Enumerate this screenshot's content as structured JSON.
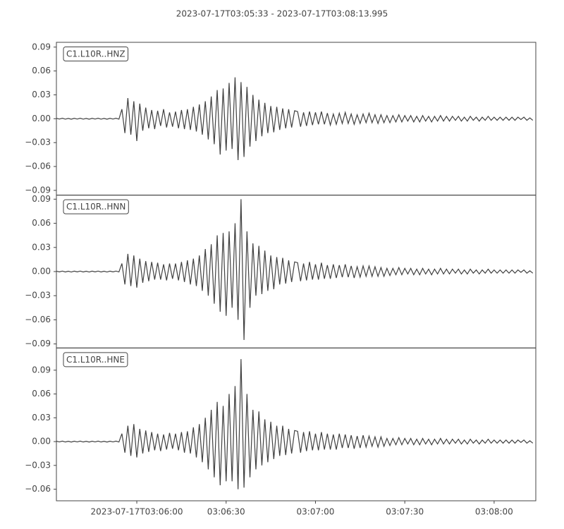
{
  "title": "2023-07-17T03:05:33  -  2023-07-17T03:08:13.995",
  "chart_data": [
    {
      "type": "line",
      "label": "C1.L10R..HNZ",
      "color": "#404040",
      "x": [
        0,
        1,
        2,
        3,
        4,
        5,
        6,
        7,
        8,
        9,
        10,
        11,
        12,
        13,
        14,
        15,
        16,
        17,
        18,
        19,
        20,
        21,
        22,
        23,
        24,
        25,
        26,
        27,
        28,
        29,
        30,
        31,
        32,
        33,
        34,
        35,
        36,
        37,
        38,
        39,
        40,
        41,
        42,
        43,
        44,
        45,
        46,
        47,
        48,
        49,
        50,
        51,
        52,
        53,
        54,
        55,
        56,
        57,
        58,
        59,
        60,
        61,
        62,
        63,
        64,
        65,
        66,
        67,
        68,
        69,
        70,
        71,
        72,
        73,
        74,
        75,
        76,
        77,
        78,
        79,
        80,
        81,
        82,
        83,
        84,
        85,
        86,
        87,
        88,
        89,
        90,
        91,
        92,
        93,
        94,
        95,
        96,
        97,
        98,
        99,
        100,
        101,
        102,
        103,
        104,
        105,
        106,
        107,
        108,
        109,
        110,
        111,
        112,
        113,
        114,
        115,
        116,
        117,
        118,
        119,
        120,
        121,
        122,
        123,
        124,
        125,
        126,
        127,
        128,
        129,
        130,
        131,
        132,
        133,
        134,
        135,
        136,
        137,
        138,
        139,
        140,
        141,
        142,
        143,
        144,
        145,
        146,
        147,
        148,
        149,
        150,
        151,
        152,
        153,
        154,
        155,
        156,
        157,
        158,
        159,
        160
      ],
      "values": [
        0.0005,
        -0.0004,
        0.0006,
        -0.0005,
        0.0004,
        -0.0006,
        0.0005,
        -0.0004,
        0.0006,
        -0.0005,
        0.0004,
        -0.0006,
        0.0005,
        -0.0004,
        0.0006,
        -0.0005,
        0.0004,
        -0.0006,
        0.0005,
        -0.0004,
        0.0006,
        -0.0005,
        0.012,
        -0.018,
        0.026,
        -0.02,
        0.022,
        -0.028,
        0.019,
        -0.015,
        0.014,
        -0.012,
        0.011,
        -0.013,
        0.01,
        -0.009,
        0.012,
        -0.011,
        0.008,
        -0.01,
        0.009,
        -0.012,
        0.011,
        -0.013,
        0.012,
        -0.014,
        0.015,
        -0.016,
        0.018,
        -0.02,
        0.022,
        -0.026,
        0.028,
        -0.032,
        0.036,
        -0.045,
        0.038,
        -0.04,
        0.045,
        -0.038,
        0.052,
        -0.052,
        0.046,
        -0.048,
        0.04,
        -0.035,
        0.03,
        -0.028,
        0.024,
        -0.022,
        0.02,
        -0.018,
        0.016,
        -0.017,
        0.015,
        -0.014,
        0.013,
        -0.012,
        0.012,
        -0.011,
        0.01,
        0.009,
        -0.01,
        0.008,
        -0.009,
        0.009,
        -0.008,
        0.008,
        -0.007,
        0.009,
        -0.007,
        0.007,
        -0.008,
        0.006,
        -0.007,
        0.007,
        -0.006,
        0.008,
        -0.006,
        0.006,
        -0.007,
        0.005,
        -0.006,
        0.006,
        -0.005,
        0.007,
        -0.005,
        0.005,
        -0.006,
        0.005,
        -0.005,
        0.004,
        -0.005,
        0.004,
        -0.004,
        0.005,
        -0.004,
        0.004,
        -0.003,
        0.004,
        -0.004,
        0.003,
        -0.004,
        0.004,
        -0.003,
        0.003,
        -0.004,
        0.003,
        -0.003,
        0.004,
        -0.003,
        0.003,
        -0.003,
        0.003,
        -0.002,
        0.003,
        -0.003,
        0.002,
        -0.003,
        0.003,
        -0.002,
        0.002,
        -0.003,
        0.002,
        -0.002,
        0.003,
        -0.002,
        0.002,
        -0.002,
        0.002,
        -0.002,
        0.002,
        -0.002,
        0.002,
        -0.002,
        0.002,
        -0.001,
        0.002,
        -0.002,
        0.001,
        -0.002
      ],
      "xlim": [
        0,
        160.995
      ],
      "ylim": [
        -0.096,
        0.096
      ],
      "yticks": [
        {
          "value": -0.09,
          "label": "−0.09"
        },
        {
          "value": -0.06,
          "label": "−0.06"
        },
        {
          "value": -0.03,
          "label": "−0.03"
        },
        {
          "value": 0,
          "label": "0.00"
        },
        {
          "value": 0.03,
          "label": "0.03"
        },
        {
          "value": 0.06,
          "label": "0.06"
        },
        {
          "value": 0.09,
          "label": "0.09"
        }
      ]
    },
    {
      "type": "line",
      "label": "C1.L10R..HNN",
      "color": "#404040",
      "x": [
        0,
        1,
        2,
        3,
        4,
        5,
        6,
        7,
        8,
        9,
        10,
        11,
        12,
        13,
        14,
        15,
        16,
        17,
        18,
        19,
        20,
        21,
        22,
        23,
        24,
        25,
        26,
        27,
        28,
        29,
        30,
        31,
        32,
        33,
        34,
        35,
        36,
        37,
        38,
        39,
        40,
        41,
        42,
        43,
        44,
        45,
        46,
        47,
        48,
        49,
        50,
        51,
        52,
        53,
        54,
        55,
        56,
        57,
        58,
        59,
        60,
        61,
        62,
        63,
        64,
        65,
        66,
        67,
        68,
        69,
        70,
        71,
        72,
        73,
        74,
        75,
        76,
        77,
        78,
        79,
        80,
        81,
        82,
        83,
        84,
        85,
        86,
        87,
        88,
        89,
        90,
        91,
        92,
        93,
        94,
        95,
        96,
        97,
        98,
        99,
        100,
        101,
        102,
        103,
        104,
        105,
        106,
        107,
        108,
        109,
        110,
        111,
        112,
        113,
        114,
        115,
        116,
        117,
        118,
        119,
        120,
        121,
        122,
        123,
        124,
        125,
        126,
        127,
        128,
        129,
        130,
        131,
        132,
        133,
        134,
        135,
        136,
        137,
        138,
        139,
        140,
        141,
        142,
        143,
        144,
        145,
        146,
        147,
        148,
        149,
        150,
        151,
        152,
        153,
        154,
        155,
        156,
        157,
        158,
        159,
        160
      ],
      "values": [
        0.0005,
        -0.0004,
        0.0006,
        -0.0005,
        0.0004,
        -0.0006,
        0.0005,
        -0.0004,
        0.0006,
        -0.0005,
        0.0004,
        -0.0006,
        0.0005,
        -0.0004,
        0.0006,
        -0.0005,
        0.0004,
        -0.0006,
        0.0005,
        -0.0004,
        0.0006,
        -0.0005,
        0.01,
        -0.016,
        0.022,
        -0.018,
        0.02,
        -0.02,
        0.016,
        -0.014,
        0.013,
        -0.012,
        0.012,
        -0.01,
        0.011,
        -0.01,
        0.009,
        -0.011,
        0.01,
        -0.009,
        0.01,
        -0.011,
        0.012,
        -0.013,
        0.014,
        -0.016,
        0.016,
        -0.018,
        0.02,
        -0.024,
        0.028,
        -0.03,
        0.034,
        -0.04,
        0.045,
        -0.05,
        0.048,
        -0.055,
        0.05,
        -0.045,
        0.06,
        -0.06,
        0.09,
        -0.085,
        0.05,
        -0.045,
        0.035,
        -0.03,
        0.032,
        -0.028,
        0.026,
        -0.024,
        0.02,
        -0.022,
        0.018,
        -0.016,
        0.017,
        -0.015,
        0.014,
        -0.013,
        0.012,
        0.011,
        -0.012,
        0.01,
        -0.011,
        0.012,
        -0.01,
        0.009,
        -0.01,
        0.011,
        -0.009,
        0.008,
        -0.009,
        0.009,
        -0.008,
        0.008,
        -0.007,
        0.009,
        -0.007,
        0.007,
        -0.008,
        0.006,
        -0.007,
        0.007,
        -0.006,
        0.007,
        -0.006,
        0.006,
        -0.006,
        0.005,
        -0.006,
        0.004,
        -0.005,
        0.004,
        -0.004,
        0.005,
        -0.004,
        0.004,
        -0.003,
        0.004,
        -0.004,
        0.003,
        -0.004,
        0.004,
        -0.003,
        0.003,
        -0.004,
        0.003,
        -0.003,
        0.004,
        -0.003,
        0.003,
        -0.003,
        0.003,
        -0.002,
        0.003,
        -0.003,
        0.002,
        -0.003,
        0.003,
        -0.002,
        0.002,
        -0.003,
        0.002,
        -0.002,
        0.003,
        -0.002,
        0.002,
        -0.002,
        0.002,
        -0.002,
        0.002,
        -0.002,
        0.002,
        -0.002,
        0.002,
        -0.001,
        0.002,
        -0.002,
        0.001,
        -0.002
      ],
      "xlim": [
        0,
        160.995
      ],
      "ylim": [
        -0.095,
        0.095
      ],
      "yticks": [
        {
          "value": -0.09,
          "label": "−0.09"
        },
        {
          "value": -0.06,
          "label": "−0.06"
        },
        {
          "value": -0.03,
          "label": "−0.03"
        },
        {
          "value": 0,
          "label": "0.00"
        },
        {
          "value": 0.03,
          "label": "0.03"
        },
        {
          "value": 0.06,
          "label": "0.06"
        },
        {
          "value": 0.09,
          "label": "0.09"
        }
      ]
    },
    {
      "type": "line",
      "label": "C1.L10R..HNE",
      "color": "#404040",
      "x": [
        0,
        1,
        2,
        3,
        4,
        5,
        6,
        7,
        8,
        9,
        10,
        11,
        12,
        13,
        14,
        15,
        16,
        17,
        18,
        19,
        20,
        21,
        22,
        23,
        24,
        25,
        26,
        27,
        28,
        29,
        30,
        31,
        32,
        33,
        34,
        35,
        36,
        37,
        38,
        39,
        40,
        41,
        42,
        43,
        44,
        45,
        46,
        47,
        48,
        49,
        50,
        51,
        52,
        53,
        54,
        55,
        56,
        57,
        58,
        59,
        60,
        61,
        62,
        63,
        64,
        65,
        66,
        67,
        68,
        69,
        70,
        71,
        72,
        73,
        74,
        75,
        76,
        77,
        78,
        79,
        80,
        81,
        82,
        83,
        84,
        85,
        86,
        87,
        88,
        89,
        90,
        91,
        92,
        93,
        94,
        95,
        96,
        97,
        98,
        99,
        100,
        101,
        102,
        103,
        104,
        105,
        106,
        107,
        108,
        109,
        110,
        111,
        112,
        113,
        114,
        115,
        116,
        117,
        118,
        119,
        120,
        121,
        122,
        123,
        124,
        125,
        126,
        127,
        128,
        129,
        130,
        131,
        132,
        133,
        134,
        135,
        136,
        137,
        138,
        139,
        140,
        141,
        142,
        143,
        144,
        145,
        146,
        147,
        148,
        149,
        150,
        151,
        152,
        153,
        154,
        155,
        156,
        157,
        158,
        159,
        160
      ],
      "values": [
        0.0005,
        -0.0004,
        0.0006,
        -0.0005,
        0.0004,
        -0.0006,
        0.0005,
        -0.0004,
        0.0006,
        -0.0005,
        0.0004,
        -0.0006,
        0.0005,
        -0.0004,
        0.0006,
        -0.0005,
        0.0004,
        -0.0006,
        0.0005,
        -0.0004,
        0.0006,
        -0.0005,
        0.01,
        -0.014,
        0.02,
        -0.018,
        0.022,
        -0.02,
        0.016,
        -0.015,
        0.014,
        -0.013,
        0.012,
        -0.011,
        0.01,
        -0.012,
        0.009,
        -0.01,
        0.011,
        -0.009,
        0.01,
        -0.011,
        0.012,
        -0.014,
        0.013,
        -0.015,
        0.018,
        -0.02,
        0.022,
        -0.026,
        0.03,
        -0.035,
        0.04,
        -0.045,
        0.05,
        -0.055,
        0.045,
        -0.05,
        0.06,
        -0.05,
        0.07,
        -0.06,
        0.104,
        -0.058,
        0.06,
        -0.045,
        0.04,
        -0.035,
        0.038,
        -0.03,
        0.028,
        -0.026,
        0.025,
        -0.022,
        0.02,
        -0.018,
        0.02,
        -0.017,
        0.016,
        -0.015,
        0.014,
        0.013,
        -0.014,
        0.012,
        -0.012,
        0.013,
        -0.011,
        0.01,
        -0.011,
        0.012,
        -0.01,
        0.01,
        -0.01,
        0.009,
        -0.01,
        0.01,
        -0.008,
        0.009,
        -0.008,
        0.008,
        -0.009,
        0.007,
        -0.008,
        0.008,
        -0.007,
        0.007,
        -0.006,
        0.006,
        -0.007,
        0.006,
        -0.006,
        0.004,
        -0.005,
        0.004,
        -0.004,
        0.005,
        -0.004,
        0.004,
        -0.003,
        0.004,
        -0.004,
        0.003,
        -0.004,
        0.004,
        -0.003,
        0.003,
        -0.004,
        0.003,
        -0.003,
        0.004,
        -0.003,
        0.003,
        -0.003,
        0.003,
        -0.002,
        0.003,
        -0.003,
        0.002,
        -0.003,
        0.003,
        -0.002,
        0.002,
        -0.003,
        0.002,
        -0.002,
        0.003,
        -0.002,
        0.002,
        -0.002,
        0.002,
        -0.002,
        0.002,
        -0.002,
        0.002,
        -0.002,
        0.002,
        -0.001,
        0.002,
        -0.002,
        0.001,
        -0.002
      ],
      "xlim": [
        0,
        160.995
      ],
      "ylim": [
        -0.0746,
        0.118
      ],
      "yticks": [
        {
          "value": -0.06,
          "label": "−0.06"
        },
        {
          "value": -0.03,
          "label": "−0.03"
        },
        {
          "value": 0,
          "label": "0.00"
        },
        {
          "value": 0.03,
          "label": "0.03"
        },
        {
          "value": 0.06,
          "label": "0.06"
        },
        {
          "value": 0.09,
          "label": "0.09"
        }
      ],
      "xticks": [
        {
          "value": 27,
          "label": "2023-07-17T03:06:00"
        },
        {
          "value": 57,
          "label": "03:06:30"
        },
        {
          "value": 87,
          "label": "03:07:00"
        },
        {
          "value": 117,
          "label": "03:07:30"
        },
        {
          "value": 147,
          "label": "03:08:00"
        }
      ]
    }
  ]
}
